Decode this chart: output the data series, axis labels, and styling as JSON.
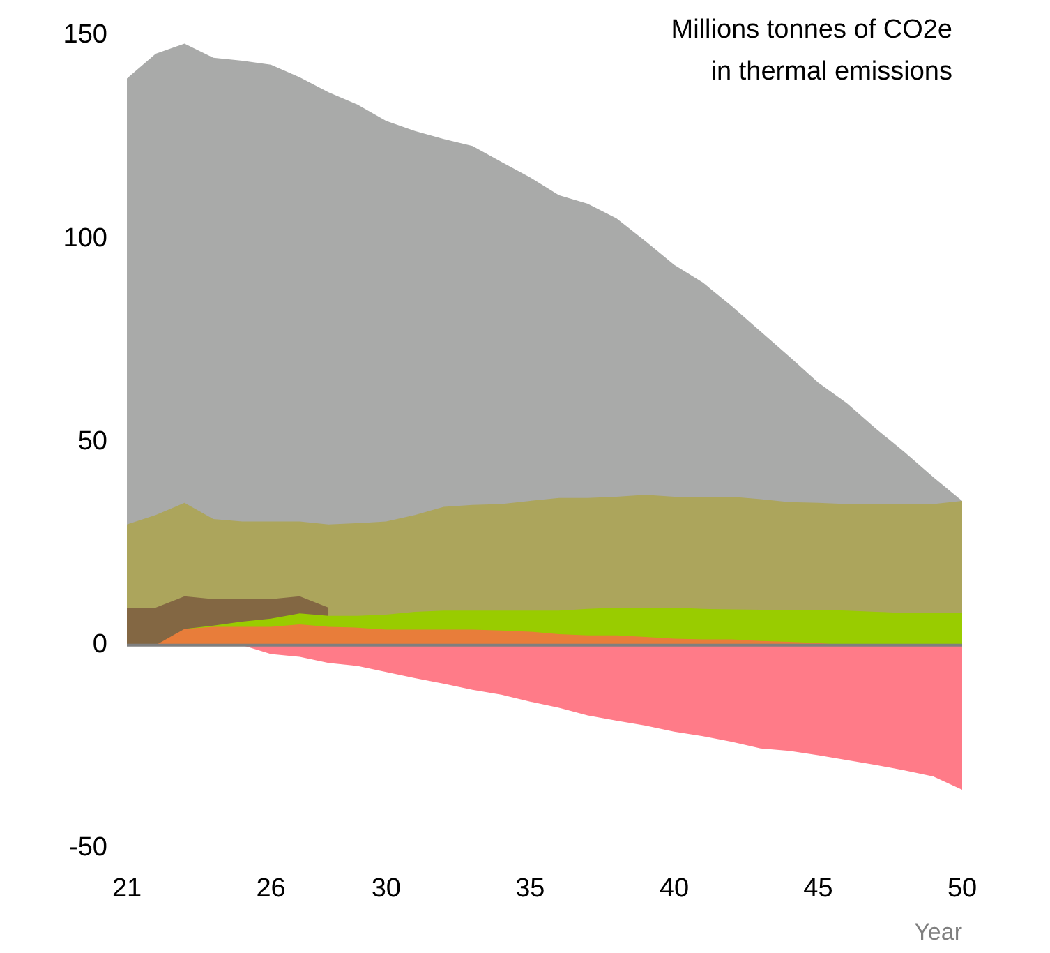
{
  "chart_data": {
    "type": "area",
    "title": "Millions tonnes of CO2e\nin thermal emissions",
    "xlabel": "Year",
    "categories": [
      "21",
      null,
      null,
      null,
      null,
      "26",
      null,
      null,
      null,
      "30",
      null,
      null,
      null,
      null,
      "35",
      null,
      null,
      null,
      null,
      "40",
      null,
      null,
      null,
      null,
      "45",
      null,
      null,
      null,
      null,
      "50"
    ],
    "series": [
      {
        "color": "#e87d3a",
        "values": [
          0,
          0,
          4,
          4.5,
          4.5,
          4.5,
          5.1,
          4.5,
          4.3,
          3.8,
          3.8,
          3.8,
          3.8,
          3.6,
          3.3,
          2.7,
          2.4,
          2.4,
          2,
          1.6,
          1.4,
          1.4,
          1,
          0.8,
          0.5,
          0,
          0,
          0,
          0,
          0
        ]
      },
      {
        "color": "#99cc00",
        "values": [
          null,
          null,
          4,
          4.8,
          5.8,
          6.5,
          7.8,
          7.2,
          7.2,
          7.5,
          8.2,
          8.5,
          8.5,
          8.5,
          8.5,
          8.5,
          8.9,
          9.2,
          9.2,
          9.2,
          8.9,
          8.8,
          8.7,
          8.7,
          8.7,
          8.5,
          8.2,
          7.9,
          7.9,
          7.9
        ]
      },
      {
        "color": "#836743",
        "values": [
          9.2,
          9.2,
          12,
          11.3,
          11.3,
          11.3,
          12,
          9.2,
          null,
          null,
          null,
          null,
          null,
          null,
          null,
          null,
          null,
          null,
          null,
          null,
          null,
          null,
          null,
          null,
          null,
          null,
          null,
          null,
          null,
          null
        ]
      },
      {
        "color": "#aca55c",
        "values": [
          29.7,
          32,
          35,
          31,
          30.4,
          30.4,
          30.4,
          29.7,
          30,
          30.4,
          32,
          34,
          34.5,
          34.7,
          35.5,
          36.2,
          36.2,
          36.5,
          37,
          36.5,
          36.5,
          36.5,
          35.9,
          35.2,
          35,
          34.7,
          34.7,
          34.7,
          34.7,
          35.5
        ]
      },
      {
        "color": "#a9aaa9",
        "values": [
          139.4,
          145.5,
          148,
          144.5,
          143.8,
          142.8,
          139.7,
          136,
          133,
          129,
          126.5,
          124.5,
          122.8,
          118.9,
          115.1,
          110.7,
          108.6,
          105,
          99.4,
          93.6,
          89.2,
          83.4,
          77.2,
          71,
          64.6,
          59.5,
          53.3,
          47.5,
          41.3,
          35.5
        ]
      },
      {
        "color": "#ff7b88",
        "values": [
          null,
          null,
          null,
          null,
          0,
          -2.2,
          -2.9,
          -4.4,
          -5.1,
          -6.6,
          -8.1,
          -9.5,
          -11,
          -12.2,
          -13.9,
          -15.4,
          -17.3,
          -18.6,
          -19.8,
          -21.3,
          -22.4,
          -23.8,
          -25.4,
          -26,
          -27.1,
          -28.3,
          -29.5,
          -30.8,
          -32.3,
          -35.6
        ]
      }
    ],
    "ylim": [
      -50,
      150
    ],
    "yticks": [
      -50,
      0,
      50,
      100,
      150
    ],
    "grid": false,
    "legend": false,
    "ref_lines": [
      {
        "axis": "y",
        "value": 0,
        "color": "#7f7f7f"
      }
    ]
  }
}
